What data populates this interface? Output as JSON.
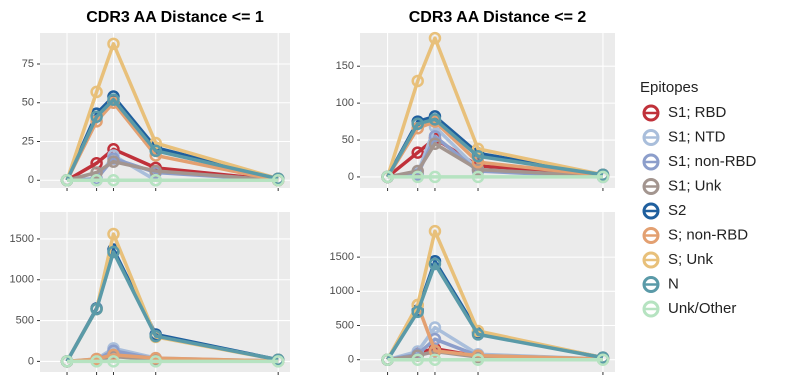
{
  "chart_data": [
    {
      "type": "line",
      "title": "CDR3 AA Distance <= 1",
      "legend_title": "Epitopes",
      "x": [
        0,
        7,
        11,
        21,
        50
      ],
      "xlim": [
        -6.4,
        52.8
      ],
      "ylim": [
        -5,
        95
      ],
      "yticks": [
        0,
        25,
        50,
        75
      ],
      "grid": true,
      "series": [
        {
          "name": "S1; RBD",
          "color": "#c0313a",
          "values": [
            0,
            11,
            20,
            8,
            0
          ]
        },
        {
          "name": "S1; NTD",
          "color": "#a9bedb",
          "values": [
            0,
            0,
            16,
            0,
            0
          ]
        },
        {
          "name": "S1; non-RBD",
          "color": "#8c9ecb",
          "values": [
            0,
            1,
            14,
            5,
            0
          ]
        },
        {
          "name": "S1; Unk",
          "color": "#a3958f",
          "values": [
            0,
            5,
            12,
            6,
            0
          ]
        },
        {
          "name": "S2",
          "color": "#1f5f9e",
          "values": [
            0,
            43,
            54,
            21,
            1
          ]
        },
        {
          "name": "S; non-RBD",
          "color": "#e3a071",
          "values": [
            0,
            38,
            50,
            16,
            0
          ]
        },
        {
          "name": "S; Unk",
          "color": "#e8c07a",
          "values": [
            0,
            57,
            88,
            24,
            1
          ]
        },
        {
          "name": "N",
          "color": "#5a9aa8",
          "values": [
            0,
            41,
            52,
            19,
            1
          ]
        },
        {
          "name": "Unk/Other",
          "color": "#b6e3c1",
          "values": [
            0,
            0,
            0,
            0,
            0
          ]
        }
      ]
    },
    {
      "type": "line",
      "title": "CDR3 AA Distance <= 2",
      "x": [
        0,
        7,
        11,
        21,
        50
      ],
      "xlim": [
        -6.4,
        52.8
      ],
      "ylim": [
        -15,
        195
      ],
      "yticks": [
        0,
        50,
        100,
        150
      ],
      "grid": true,
      "series": [
        {
          "color": "#c0313a",
          "values": [
            0,
            33,
            52,
            15,
            2
          ]
        },
        {
          "color": "#a9bedb",
          "values": [
            0,
            5,
            68,
            10,
            0
          ]
        },
        {
          "color": "#8c9ecb",
          "values": [
            0,
            3,
            55,
            8,
            0
          ]
        },
        {
          "color": "#a3958f",
          "values": [
            0,
            8,
            45,
            10,
            1
          ]
        },
        {
          "color": "#1f5f9e",
          "values": [
            0,
            75,
            82,
            32,
            3
          ]
        },
        {
          "color": "#e3a071",
          "values": [
            0,
            66,
            75,
            20,
            2
          ]
        },
        {
          "color": "#e8c07a",
          "values": [
            0,
            130,
            188,
            38,
            3
          ]
        },
        {
          "color": "#5a9aa8",
          "values": [
            0,
            72,
            78,
            28,
            3
          ]
        },
        {
          "color": "#b6e3c1",
          "values": [
            0,
            0,
            0,
            0,
            0
          ]
        }
      ]
    },
    {
      "type": "line",
      "x": [
        0,
        7,
        11,
        21,
        50
      ],
      "xlim": [
        -6.4,
        52.8
      ],
      "ylim": [
        -130,
        1830
      ],
      "yticks": [
        0,
        500,
        1000,
        1500
      ],
      "grid": true,
      "series": [
        {
          "color": "#c0313a",
          "values": [
            0,
            20,
            100,
            30,
            5
          ]
        },
        {
          "color": "#a9bedb",
          "values": [
            0,
            30,
            160,
            40,
            5
          ]
        },
        {
          "color": "#8c9ecb",
          "values": [
            0,
            20,
            130,
            30,
            5
          ]
        },
        {
          "color": "#a3958f",
          "values": [
            0,
            15,
            60,
            20,
            3
          ]
        },
        {
          "color": "#1f5f9e",
          "values": [
            0,
            650,
            1370,
            330,
            20
          ]
        },
        {
          "color": "#e3a071",
          "values": [
            0,
            30,
            80,
            40,
            5
          ]
        },
        {
          "color": "#e8c07a",
          "values": [
            0,
            640,
            1560,
            300,
            20
          ]
        },
        {
          "color": "#5a9aa8",
          "values": [
            0,
            640,
            1340,
            310,
            20
          ]
        },
        {
          "color": "#b6e3c1",
          "values": [
            0,
            0,
            0,
            0,
            0
          ]
        }
      ]
    },
    {
      "type": "line",
      "x": [
        0,
        7,
        11,
        21,
        50
      ],
      "xlim": [
        -6.4,
        52.8
      ],
      "ylim": [
        -180,
        2160
      ],
      "yticks": [
        0,
        500,
        1000,
        1500
      ],
      "grid": true,
      "series": [
        {
          "color": "#c0313a",
          "values": [
            0,
            100,
            160,
            50,
            10
          ]
        },
        {
          "color": "#a9bedb",
          "values": [
            0,
            120,
            470,
            80,
            10
          ]
        },
        {
          "color": "#8c9ecb",
          "values": [
            0,
            80,
            300,
            60,
            10
          ]
        },
        {
          "color": "#a3958f",
          "values": [
            0,
            60,
            120,
            40,
            5
          ]
        },
        {
          "color": "#1f5f9e",
          "values": [
            0,
            720,
            1440,
            400,
            30
          ]
        },
        {
          "color": "#e3a071",
          "values": [
            0,
            800,
            130,
            60,
            10
          ]
        },
        {
          "color": "#e8c07a",
          "values": [
            0,
            800,
            1880,
            420,
            30
          ]
        },
        {
          "color": "#5a9aa8",
          "values": [
            0,
            700,
            1400,
            370,
            30
          ]
        },
        {
          "color": "#b6e3c1",
          "values": [
            0,
            0,
            0,
            0,
            0
          ]
        }
      ]
    }
  ]
}
